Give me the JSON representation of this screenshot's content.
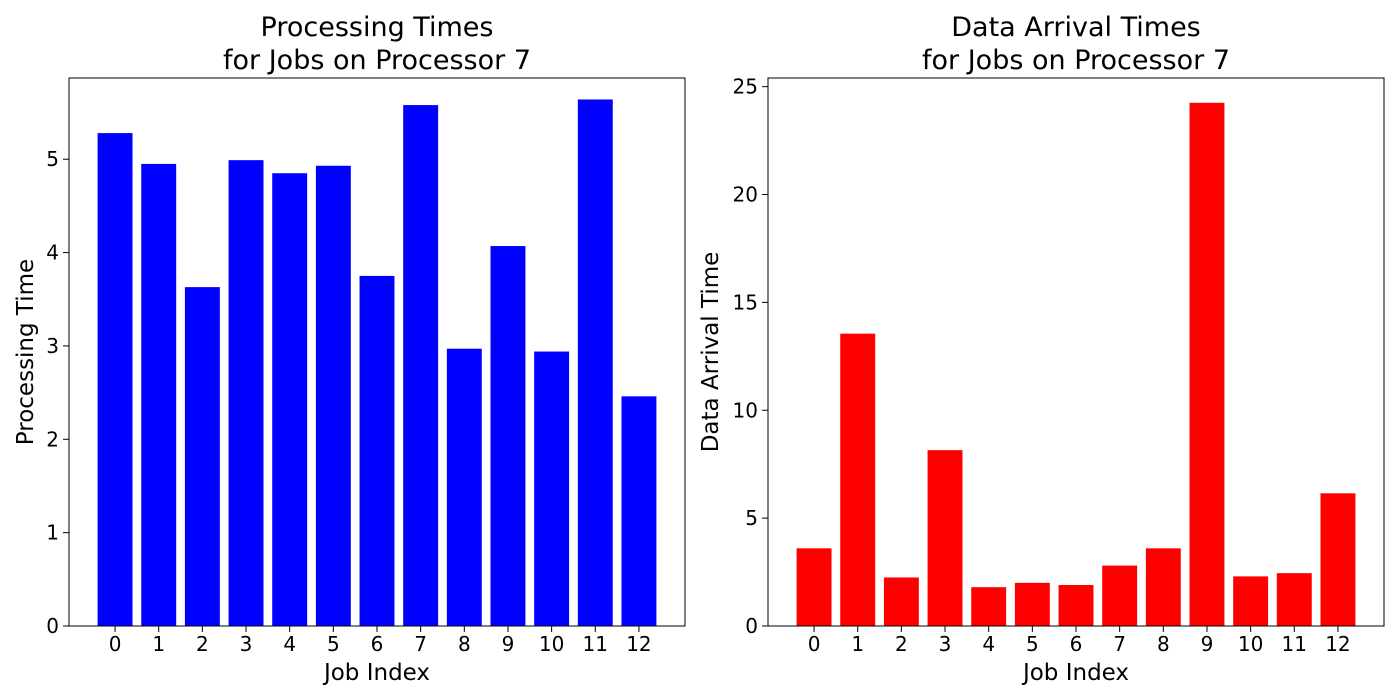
{
  "chart_data": [
    {
      "type": "bar",
      "title": [
        "Processing Times",
        "for Jobs on Processor 7"
      ],
      "xlabel": "Job Index",
      "ylabel": "Processing Time",
      "categories": [
        "0",
        "1",
        "2",
        "3",
        "4",
        "5",
        "6",
        "7",
        "8",
        "9",
        "10",
        "11",
        "12"
      ],
      "values": [
        5.28,
        4.95,
        3.63,
        4.99,
        4.85,
        4.93,
        3.75,
        5.58,
        2.97,
        4.07,
        2.94,
        5.64,
        2.46
      ],
      "ylim": [
        0,
        5.87
      ],
      "yticks": [
        0,
        1,
        2,
        3,
        4,
        5
      ],
      "color": "#0000ff",
      "grid": false
    },
    {
      "type": "bar",
      "title": [
        "Data Arrival Times",
        "for Jobs on Processor 7"
      ],
      "xlabel": "Job Index",
      "ylabel": "Data Arrival Time",
      "categories": [
        "0",
        "1",
        "2",
        "3",
        "4",
        "5",
        "6",
        "7",
        "8",
        "9",
        "10",
        "11",
        "12"
      ],
      "values": [
        3.6,
        13.55,
        2.25,
        8.15,
        1.8,
        2.0,
        1.9,
        2.8,
        3.6,
        24.25,
        2.3,
        2.45,
        6.15
      ],
      "ylim": [
        0,
        25.4
      ],
      "yticks": [
        0,
        5,
        10,
        15,
        20,
        25
      ],
      "color": "#ff0000",
      "grid": false
    }
  ]
}
